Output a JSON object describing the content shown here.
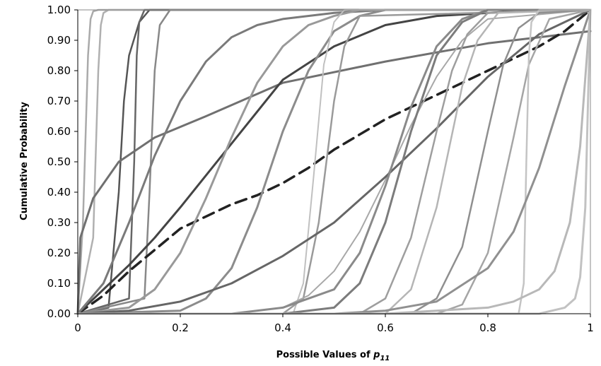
{
  "chart_data": {
    "type": "line",
    "title": "",
    "xlabel": "Possible Values of ",
    "xlabel_var": "p",
    "xlabel_sub": "11",
    "ylabel": "Cumulative Probability",
    "xlim": [
      0,
      1
    ],
    "ylim": [
      0,
      1
    ],
    "grid": false,
    "legend": "none",
    "x_ticks": [
      0,
      0.2,
      0.4,
      0.6,
      0.8,
      1
    ],
    "x_tick_labels": [
      "0",
      "0.2",
      "0.4",
      "0.6",
      "0.8",
      "1"
    ],
    "y_ticks": [
      0,
      0.1,
      0.2,
      0.3,
      0.4,
      0.5,
      0.6,
      0.7,
      0.8,
      0.9,
      1
    ],
    "y_tick_labels": [
      "0.00",
      "0.10",
      "0.20",
      "0.30",
      "0.40",
      "0.50",
      "0.60",
      "0.70",
      "0.80",
      "0.90",
      "1.00"
    ],
    "series": [
      {
        "color": "#aaaaaa",
        "dash": false,
        "width": 2.5,
        "x": [
          0,
          0.01,
          0.02,
          0.025,
          0.03,
          0.04,
          1
        ],
        "y": [
          0,
          0.3,
          0.85,
          0.97,
          0.995,
          1.0,
          1.0
        ]
      },
      {
        "color": "#b0b0b0",
        "dash": false,
        "width": 2.5,
        "x": [
          0,
          0.03,
          0.04,
          0.045,
          0.05,
          0.06,
          1
        ],
        "y": [
          0,
          0.25,
          0.8,
          0.95,
          0.99,
          1.0,
          1.0
        ]
      },
      {
        "color": "#555555",
        "dash": false,
        "width": 2.5,
        "x": [
          0,
          0.06,
          0.08,
          0.09,
          0.1,
          0.12,
          0.14,
          1
        ],
        "y": [
          0,
          0.02,
          0.4,
          0.7,
          0.85,
          0.96,
          1.0,
          1.0
        ]
      },
      {
        "color": "#666666",
        "dash": false,
        "width": 2.5,
        "x": [
          0,
          0.1,
          0.11,
          0.115,
          0.12,
          0.13,
          1
        ],
        "y": [
          0,
          0.05,
          0.5,
          0.85,
          0.96,
          1.0,
          1.0
        ]
      },
      {
        "color": "#888888",
        "dash": false,
        "width": 2.5,
        "x": [
          0,
          0.13,
          0.14,
          0.15,
          0.16,
          0.18,
          1
        ],
        "y": [
          0,
          0.05,
          0.4,
          0.8,
          0.95,
          1.0,
          1.0
        ]
      },
      {
        "color": "#707070",
        "dash": false,
        "width": 3,
        "x": [
          0,
          0.005,
          0.03,
          0.08,
          0.15,
          0.25,
          0.4,
          0.6,
          0.8,
          0.9,
          1.0
        ],
        "y": [
          0,
          0.25,
          0.38,
          0.5,
          0.58,
          0.65,
          0.76,
          0.83,
          0.89,
          0.91,
          0.93
        ]
      },
      {
        "color": "#222222",
        "dash": true,
        "width": 3.5,
        "x": [
          0,
          0.05,
          0.1,
          0.15,
          0.2,
          0.25,
          0.3,
          0.35,
          0.4,
          0.45,
          0.5,
          0.55,
          0.6,
          0.65,
          0.7,
          0.75,
          0.8,
          0.85,
          0.9,
          0.95,
          1.0
        ],
        "y": [
          0,
          0.06,
          0.14,
          0.21,
          0.28,
          0.32,
          0.36,
          0.39,
          0.43,
          0.48,
          0.54,
          0.59,
          0.64,
          0.68,
          0.72,
          0.76,
          0.8,
          0.84,
          0.88,
          0.93,
          1.0
        ]
      },
      {
        "color": "#444444",
        "dash": false,
        "width": 3,
        "x": [
          0,
          0.05,
          0.1,
          0.15,
          0.2,
          0.3,
          0.4,
          0.5,
          0.6,
          0.7,
          0.8,
          0.9,
          1.0
        ],
        "y": [
          0,
          0.08,
          0.16,
          0.25,
          0.35,
          0.56,
          0.77,
          0.88,
          0.95,
          0.98,
          0.99,
          1.0,
          1.0
        ]
      },
      {
        "color": "#7a7a7a",
        "dash": false,
        "width": 3,
        "x": [
          0,
          0.05,
          0.1,
          0.15,
          0.2,
          0.25,
          0.3,
          0.35,
          0.4,
          0.5,
          0.6,
          1.0
        ],
        "y": [
          0,
          0.1,
          0.3,
          0.52,
          0.7,
          0.83,
          0.91,
          0.95,
          0.97,
          0.99,
          1.0,
          1.0
        ]
      },
      {
        "color": "#999999",
        "dash": false,
        "width": 3,
        "x": [
          0,
          0.1,
          0.15,
          0.2,
          0.25,
          0.3,
          0.35,
          0.4,
          0.45,
          0.5,
          0.55,
          1.0
        ],
        "y": [
          0,
          0.02,
          0.08,
          0.2,
          0.38,
          0.58,
          0.76,
          0.88,
          0.95,
          0.98,
          1.0,
          1.0
        ]
      },
      {
        "color": "#8c8c8c",
        "dash": false,
        "width": 3,
        "x": [
          0,
          0.2,
          0.25,
          0.3,
          0.35,
          0.4,
          0.45,
          0.5,
          0.55,
          0.6,
          1.0
        ],
        "y": [
          0,
          0.01,
          0.05,
          0.15,
          0.35,
          0.6,
          0.8,
          0.93,
          0.98,
          1.0,
          1.0
        ]
      },
      {
        "color": "#c0c0c0",
        "dash": false,
        "width": 2,
        "x": [
          0,
          0.42,
          0.44,
          0.46,
          0.48,
          0.5,
          0.52,
          1.0
        ],
        "y": [
          0,
          0.0,
          0.1,
          0.45,
          0.82,
          0.96,
          1.0,
          1.0
        ]
      },
      {
        "color": "#9a9a9a",
        "dash": false,
        "width": 2.5,
        "x": [
          0,
          0.4,
          0.44,
          0.47,
          0.5,
          0.52,
          0.55,
          1.0
        ],
        "y": [
          0,
          0.0,
          0.05,
          0.3,
          0.7,
          0.88,
          0.98,
          1.0
        ]
      },
      {
        "color": "#a8a8a8",
        "dash": false,
        "width": 2,
        "x": [
          0,
          0.3,
          0.4,
          0.45,
          0.5,
          0.55,
          0.6,
          0.65,
          0.7,
          0.75,
          0.8,
          1.0
        ],
        "y": [
          0,
          0.0,
          0.02,
          0.06,
          0.14,
          0.27,
          0.44,
          0.62,
          0.78,
          0.9,
          0.97,
          1.0
        ]
      },
      {
        "color": "#666666",
        "dash": false,
        "width": 3,
        "x": [
          0,
          0.1,
          0.2,
          0.3,
          0.4,
          0.5,
          0.6,
          0.7,
          0.8,
          0.9,
          1.0
        ],
        "y": [
          0,
          0.01,
          0.04,
          0.1,
          0.19,
          0.3,
          0.45,
          0.61,
          0.78,
          0.92,
          1.0
        ]
      },
      {
        "color": "#8a8a8a",
        "dash": false,
        "width": 3,
        "x": [
          0,
          0.3,
          0.4,
          0.5,
          0.55,
          0.6,
          0.65,
          0.7,
          0.75,
          0.8,
          1.0
        ],
        "y": [
          0,
          0.0,
          0.02,
          0.08,
          0.2,
          0.42,
          0.68,
          0.88,
          0.97,
          1.0,
          1.0
        ]
      },
      {
        "color": "#7c7c7c",
        "dash": false,
        "width": 3,
        "x": [
          0,
          0.4,
          0.5,
          0.55,
          0.6,
          0.65,
          0.7,
          0.75,
          0.8,
          1.0
        ],
        "y": [
          0,
          0.0,
          0.02,
          0.1,
          0.3,
          0.6,
          0.85,
          0.96,
          1.0,
          1.0
        ]
      },
      {
        "color": "#9e9e9e",
        "dash": false,
        "width": 2.5,
        "x": [
          0,
          0.55,
          0.6,
          0.65,
          0.7,
          0.73,
          0.76,
          0.8,
          1.0
        ],
        "y": [
          0,
          0.0,
          0.05,
          0.25,
          0.6,
          0.8,
          0.92,
          0.99,
          1.0
        ]
      },
      {
        "color": "#b5b5b5",
        "dash": false,
        "width": 2.5,
        "x": [
          0,
          0.6,
          0.65,
          0.7,
          0.75,
          0.78,
          0.82,
          1.0
        ],
        "y": [
          0,
          0.0,
          0.08,
          0.35,
          0.75,
          0.9,
          0.99,
          1.0
        ]
      },
      {
        "color": "#8f8f8f",
        "dash": false,
        "width": 2.5,
        "x": [
          0,
          0.65,
          0.7,
          0.75,
          0.8,
          0.83,
          0.86,
          0.9,
          1.0
        ],
        "y": [
          0,
          0.0,
          0.05,
          0.22,
          0.6,
          0.82,
          0.94,
          0.99,
          1.0
        ]
      },
      {
        "color": "#a5a5a5",
        "dash": false,
        "width": 2.5,
        "x": [
          0,
          0.7,
          0.75,
          0.8,
          0.85,
          0.88,
          0.92,
          1.0
        ],
        "y": [
          0,
          0.0,
          0.03,
          0.2,
          0.58,
          0.82,
          0.97,
          1.0
        ]
      },
      {
        "color": "#c4c4c4",
        "dash": false,
        "width": 2.5,
        "x": [
          0,
          0.86,
          0.87,
          0.875,
          0.88,
          0.885,
          0.9,
          1.0
        ],
        "y": [
          0,
          0.0,
          0.1,
          0.5,
          0.85,
          0.96,
          1.0,
          1.0
        ]
      },
      {
        "color": "#909090",
        "dash": false,
        "width": 3,
        "x": [
          0,
          0.5,
          0.6,
          0.7,
          0.8,
          0.85,
          0.9,
          0.95,
          1.0
        ],
        "y": [
          0,
          0.0,
          0.01,
          0.04,
          0.15,
          0.27,
          0.48,
          0.75,
          1.0
        ]
      },
      {
        "color": "#b8b8b8",
        "dash": false,
        "width": 3,
        "x": [
          0,
          0.6,
          0.7,
          0.8,
          0.85,
          0.9,
          0.93,
          0.96,
          0.98,
          1.0
        ],
        "y": [
          0,
          0.0,
          0.01,
          0.02,
          0.04,
          0.08,
          0.14,
          0.3,
          0.55,
          1.0
        ]
      },
      {
        "color": "#c2c2c2",
        "dash": false,
        "width": 3,
        "x": [
          0,
          0.9,
          0.95,
          0.97,
          0.98,
          0.99,
          1.0
        ],
        "y": [
          0,
          0.0,
          0.02,
          0.05,
          0.12,
          0.35,
          1.0
        ]
      }
    ]
  }
}
